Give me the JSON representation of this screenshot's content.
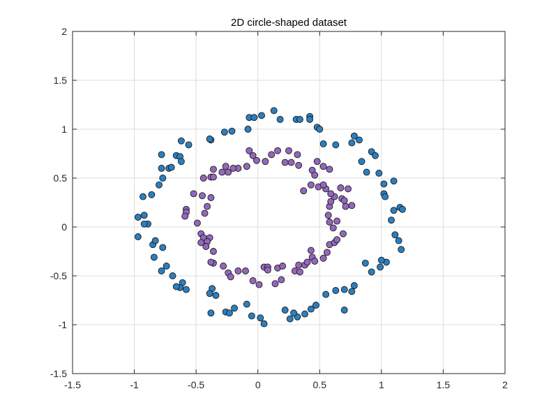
{
  "chart_data": {
    "type": "scatter",
    "title": "2D circle-shaped dataset",
    "xlabel": "",
    "ylabel": "",
    "xlim": [
      -1.5,
      2
    ],
    "ylim": [
      -1.5,
      2
    ],
    "xticks": [
      -1.5,
      -1,
      -0.5,
      0,
      0.5,
      1,
      1.5,
      2
    ],
    "xtick_labels": [
      "-1.5",
      "-1",
      "-0.5",
      "0",
      "0.5",
      "1",
      "1.5",
      "2"
    ],
    "yticks": [
      -1.5,
      -1,
      -0.5,
      0,
      0.5,
      1,
      1.5,
      2
    ],
    "ytick_labels": [
      "-1.5",
      "-1",
      "-0.5",
      "0",
      "0.5",
      "1",
      "1.5",
      "2"
    ],
    "grid": true,
    "series": [
      {
        "color": "#2b7fbf",
        "points": [
          [
            0.13,
            1.19
          ],
          [
            0.18,
            1.1
          ],
          [
            0.31,
            1.1
          ],
          [
            0.34,
            1.1
          ],
          [
            0.42,
            1.13
          ],
          [
            0.42,
            1.1
          ],
          [
            -0.07,
            1.12
          ],
          [
            -0.03,
            1.12
          ],
          [
            -0.08,
            1.0
          ],
          [
            -0.38,
            0.89
          ],
          [
            -0.27,
            0.97
          ],
          [
            -0.21,
            0.98
          ],
          [
            0.48,
            1.02
          ],
          [
            0.5,
            1.0
          ],
          [
            0.53,
            0.85
          ],
          [
            0.63,
            0.84
          ],
          [
            0.76,
            0.86
          ],
          [
            0.78,
            0.93
          ],
          [
            0.82,
            0.89
          ],
          [
            0.84,
            0.67
          ],
          [
            0.88,
            0.56
          ],
          [
            0.92,
            0.77
          ],
          [
            0.95,
            0.73
          ],
          [
            0.98,
            0.55
          ],
          [
            1.02,
            0.44
          ],
          [
            1.02,
            0.34
          ],
          [
            1.03,
            0.31
          ],
          [
            1.1,
            0.47
          ],
          [
            1.1,
            0.17
          ],
          [
            1.15,
            0.2
          ],
          [
            1.17,
            0.18
          ],
          [
            1.08,
            0.07
          ],
          [
            1.11,
            -0.08
          ],
          [
            1.14,
            -0.14
          ],
          [
            1.16,
            -0.23
          ],
          [
            1.04,
            -0.36
          ],
          [
            1.0,
            -0.34
          ],
          [
            0.99,
            -0.41
          ],
          [
            0.92,
            -0.46
          ],
          [
            0.87,
            -0.37
          ],
          [
            0.78,
            -0.6
          ],
          [
            0.76,
            -0.66
          ],
          [
            0.7,
            -0.64
          ],
          [
            0.63,
            -0.65
          ],
          [
            0.7,
            -0.85
          ],
          [
            0.55,
            -0.69
          ],
          [
            0.47,
            -0.8
          ],
          [
            0.43,
            -0.84
          ],
          [
            0.38,
            -0.89
          ],
          [
            0.32,
            -0.92
          ],
          [
            0.29,
            -0.88
          ],
          [
            0.26,
            -0.94
          ],
          [
            0.22,
            -0.85
          ],
          [
            0.05,
            -0.99
          ],
          [
            0.02,
            -0.93
          ],
          [
            -0.05,
            -0.91
          ],
          [
            -0.09,
            -0.79
          ],
          [
            -0.19,
            -0.83
          ],
          [
            -0.26,
            -0.87
          ],
          [
            -0.23,
            -0.88
          ],
          [
            -0.34,
            -0.7
          ],
          [
            -0.37,
            -0.63
          ],
          [
            -0.39,
            -0.68
          ],
          [
            -0.38,
            -0.88
          ],
          [
            -0.61,
            -0.57
          ],
          [
            -0.63,
            -0.62
          ],
          [
            -0.58,
            -0.64
          ],
          [
            -0.66,
            -0.61
          ],
          [
            -0.69,
            -0.5
          ],
          [
            -0.78,
            -0.45
          ],
          [
            -0.74,
            -0.4
          ],
          [
            -0.84,
            -0.31
          ],
          [
            -0.77,
            -0.21
          ],
          [
            -0.85,
            -0.18
          ],
          [
            -0.83,
            -0.14
          ],
          [
            -0.97,
            -0.1
          ],
          [
            -0.89,
            0.03
          ],
          [
            -0.92,
            0.03
          ],
          [
            -0.97,
            0.1
          ],
          [
            -0.92,
            0.12
          ],
          [
            -0.93,
            0.31
          ],
          [
            -0.86,
            0.33
          ],
          [
            -0.8,
            0.43
          ],
          [
            -0.77,
            0.5
          ],
          [
            -0.72,
            0.6
          ],
          [
            -0.78,
            0.6
          ],
          [
            -0.78,
            0.74
          ],
          [
            -0.7,
            0.61
          ],
          [
            -0.66,
            0.73
          ],
          [
            -0.63,
            0.72
          ],
          [
            -0.62,
            0.67
          ],
          [
            -0.62,
            0.88
          ],
          [
            -0.56,
            0.84
          ],
          [
            -0.39,
            0.9
          ],
          [
            0.03,
            1.14
          ]
        ]
      },
      {
        "color": "#9467bd",
        "points": [
          [
            0.11,
            0.74
          ],
          [
            0.16,
            0.78
          ],
          [
            0.25,
            0.78
          ],
          [
            0.27,
            0.66
          ],
          [
            0.33,
            0.63
          ],
          [
            0.32,
            0.74
          ],
          [
            0.44,
            0.58
          ],
          [
            0.48,
            0.67
          ],
          [
            0.53,
            0.62
          ],
          [
            0.58,
            0.59
          ],
          [
            -0.07,
            0.78
          ],
          [
            -0.04,
            0.73
          ],
          [
            -0.01,
            0.68
          ],
          [
            -0.09,
            0.62
          ],
          [
            0.06,
            0.67
          ],
          [
            -0.16,
            0.6
          ],
          [
            -0.2,
            0.6
          ],
          [
            -0.26,
            0.62
          ],
          [
            -0.29,
            0.56
          ],
          [
            -0.24,
            0.56
          ],
          [
            -0.38,
            0.51
          ],
          [
            -0.36,
            0.51
          ],
          [
            -0.36,
            0.59
          ],
          [
            -0.44,
            0.5
          ],
          [
            -0.52,
            0.34
          ],
          [
            -0.45,
            0.32
          ],
          [
            -0.38,
            0.3
          ],
          [
            -0.41,
            0.21
          ],
          [
            -0.43,
            0.14
          ],
          [
            -0.58,
            0.18
          ],
          [
            -0.58,
            0.15
          ],
          [
            -0.59,
            0.11
          ],
          [
            -0.49,
            0.04
          ],
          [
            -0.46,
            -0.07
          ],
          [
            -0.44,
            -0.11
          ],
          [
            -0.39,
            -0.11
          ],
          [
            -0.41,
            -0.15
          ],
          [
            -0.46,
            -0.16
          ],
          [
            -0.42,
            -0.2
          ],
          [
            -0.36,
            -0.25
          ],
          [
            -0.36,
            -0.37
          ],
          [
            -0.38,
            -0.36
          ],
          [
            -0.28,
            -0.4
          ],
          [
            -0.24,
            -0.47
          ],
          [
            -0.22,
            -0.51
          ],
          [
            -0.16,
            -0.45
          ],
          [
            -0.1,
            -0.45
          ],
          [
            -0.04,
            -0.55
          ],
          [
            0.01,
            -0.59
          ],
          [
            0.05,
            -0.41
          ],
          [
            0.08,
            -0.41
          ],
          [
            0.08,
            -0.44
          ],
          [
            0.16,
            -0.42
          ],
          [
            0.2,
            -0.4
          ],
          [
            0.14,
            -0.58
          ],
          [
            0.19,
            -0.54
          ],
          [
            0.3,
            -0.45
          ],
          [
            0.34,
            -0.46
          ],
          [
            0.33,
            -0.39
          ],
          [
            0.38,
            -0.39
          ],
          [
            0.4,
            -0.36
          ],
          [
            0.43,
            -0.24
          ],
          [
            0.44,
            -0.31
          ],
          [
            0.46,
            -0.35
          ],
          [
            0.53,
            -0.32
          ],
          [
            0.56,
            -0.26
          ],
          [
            0.58,
            -0.18
          ],
          [
            0.62,
            -0.16
          ],
          [
            0.64,
            -0.13
          ],
          [
            0.69,
            -0.07
          ],
          [
            0.61,
            -0.01
          ],
          [
            0.58,
            0.05
          ],
          [
            0.64,
            0.06
          ],
          [
            0.57,
            0.12
          ],
          [
            0.58,
            0.21
          ],
          [
            0.59,
            0.26
          ],
          [
            0.62,
            0.31
          ],
          [
            0.68,
            0.29
          ],
          [
            0.7,
            0.27
          ],
          [
            0.71,
            0.21
          ],
          [
            0.76,
            0.22
          ],
          [
            0.73,
            0.39
          ],
          [
            0.67,
            0.4
          ],
          [
            0.59,
            0.34
          ],
          [
            0.49,
            0.41
          ],
          [
            0.55,
            0.39
          ],
          [
            0.46,
            0.53
          ],
          [
            0.43,
            0.43
          ],
          [
            0.37,
            0.37
          ],
          [
            0.22,
            0.66
          ],
          [
            0.53,
            0.43
          ]
        ]
      }
    ]
  }
}
